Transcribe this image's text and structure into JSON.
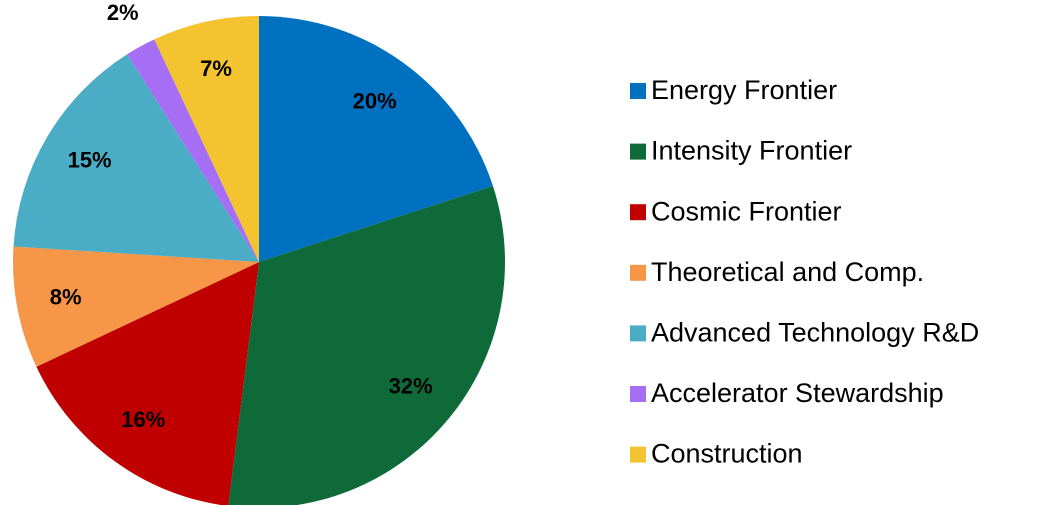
{
  "chart_data": {
    "type": "pie",
    "categories": [
      "Energy Frontier",
      "Intensity Frontier",
      "Cosmic Frontier",
      "Theoretical and Comp.",
      "Advanced Technology R&D",
      "Accelerator Stewardship",
      "Construction"
    ],
    "values": [
      20,
      32,
      16,
      8,
      15,
      2,
      7
    ],
    "value_labels": [
      "20%",
      "32%",
      "16%",
      "8%",
      "15%",
      "2%",
      "7%"
    ],
    "colors": [
      "#0070c0",
      "#0f6a3a",
      "#c00000",
      "#f79646",
      "#4bacc6",
      "#a66ef5",
      "#f4c430"
    ],
    "legend": "right"
  }
}
